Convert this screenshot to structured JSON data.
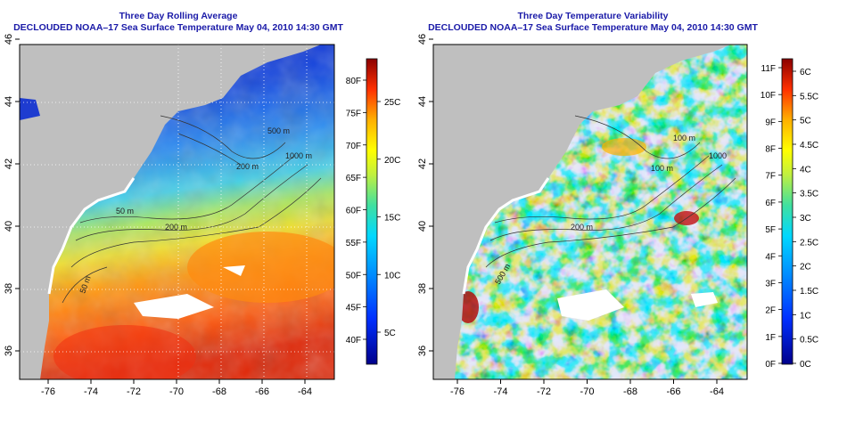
{
  "left_panel": {
    "title_line1": "Three Day Rolling Average",
    "title_line2": "DECLOUDED NOAA–17 Sea Surface Temperature May 04, 2010 14:30 GMT",
    "x_ticks": [
      "-76",
      "-74",
      "-72",
      "-70",
      "-68",
      "-66",
      "-64"
    ],
    "y_ticks": [
      "36",
      "38",
      "40",
      "42",
      "44",
      "46"
    ],
    "colorbar_f": [
      "40F",
      "45F",
      "50F",
      "55F",
      "60F",
      "65F",
      "70F",
      "75F",
      "80F"
    ],
    "colorbar_c": [
      "5C",
      "10C",
      "15C",
      "20C",
      "25C"
    ],
    "contour_labels": [
      "200 m",
      "500 m",
      "1000 m",
      "50 m",
      "200 m",
      "50 m"
    ]
  },
  "right_panel": {
    "title_line1": "Three Day Temperature Variability",
    "title_line2": "DECLOUDED NOAA–17 Sea Surface Temperature May 04, 2010 14:30 GMT",
    "x_ticks": [
      "-76",
      "-74",
      "-72",
      "-70",
      "-68",
      "-66",
      "-64"
    ],
    "y_ticks": [
      "36",
      "38",
      "40",
      "42",
      "44",
      "46"
    ],
    "colorbar_f": [
      "0F",
      "1F",
      "2F",
      "3F",
      "4F",
      "5F",
      "6F",
      "7F",
      "8F",
      "9F",
      "10F",
      "11F"
    ],
    "colorbar_c": [
      "0C",
      "0.5C",
      "1C",
      "1.5C",
      "2C",
      "2.5C",
      "3C",
      "3.5C",
      "4C",
      "4.5C",
      "5C",
      "5.5C",
      "6C"
    ],
    "contour_labels": [
      "100 m",
      "100 m",
      "1000",
      "200 m",
      "500 m"
    ]
  },
  "colors": {
    "land": "#bfbfbf",
    "title": "#1a1aa8"
  }
}
